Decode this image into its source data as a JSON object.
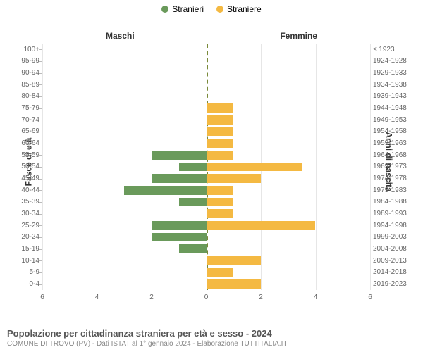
{
  "legend": {
    "male": "Stranieri",
    "female": "Straniere"
  },
  "columns": {
    "left": "Maschi",
    "right": "Femmine"
  },
  "axis_titles": {
    "left": "Fasce di età",
    "right": "Anni di nascita"
  },
  "colors": {
    "male": "#6a9a5b",
    "female": "#f4b942",
    "grid": "#e6e6e6",
    "center_dash": "#7a8a3a",
    "bg": "#ffffff"
  },
  "chart": {
    "type": "population-pyramid",
    "x_max": 6,
    "x_ticks": [
      0,
      2,
      4,
      6
    ],
    "rows": [
      {
        "age": "100+",
        "birth": "≤ 1923",
        "m": 0,
        "f": 0
      },
      {
        "age": "95-99",
        "birth": "1924-1928",
        "m": 0,
        "f": 0
      },
      {
        "age": "90-94",
        "birth": "1929-1933",
        "m": 0,
        "f": 0
      },
      {
        "age": "85-89",
        "birth": "1934-1938",
        "m": 0,
        "f": 0
      },
      {
        "age": "80-84",
        "birth": "1939-1943",
        "m": 0,
        "f": 0
      },
      {
        "age": "75-79",
        "birth": "1944-1948",
        "m": 0,
        "f": 1
      },
      {
        "age": "70-74",
        "birth": "1949-1953",
        "m": 0,
        "f": 1
      },
      {
        "age": "65-69",
        "birth": "1954-1958",
        "m": 0,
        "f": 1
      },
      {
        "age": "60-64",
        "birth": "1959-1963",
        "m": 0,
        "f": 1
      },
      {
        "age": "55-59",
        "birth": "1964-1968",
        "m": 2,
        "f": 1
      },
      {
        "age": "50-54",
        "birth": "1969-1973",
        "m": 1,
        "f": 3.5
      },
      {
        "age": "45-49",
        "birth": "1974-1978",
        "m": 2,
        "f": 2
      },
      {
        "age": "40-44",
        "birth": "1979-1983",
        "m": 3,
        "f": 1
      },
      {
        "age": "35-39",
        "birth": "1984-1988",
        "m": 1,
        "f": 1
      },
      {
        "age": "30-34",
        "birth": "1989-1993",
        "m": 0,
        "f": 1
      },
      {
        "age": "25-29",
        "birth": "1994-1998",
        "m": 2,
        "f": 4
      },
      {
        "age": "20-24",
        "birth": "1999-2003",
        "m": 2,
        "f": 0
      },
      {
        "age": "15-19",
        "birth": "2004-2008",
        "m": 1,
        "f": 0
      },
      {
        "age": "10-14",
        "birth": "2009-2013",
        "m": 0,
        "f": 2
      },
      {
        "age": "5-9",
        "birth": "2014-2018",
        "m": 0,
        "f": 1
      },
      {
        "age": "0-4",
        "birth": "2019-2023",
        "m": 0,
        "f": 2
      }
    ]
  },
  "footer": {
    "title": "Popolazione per cittadinanza straniera per età e sesso - 2024",
    "sub": "COMUNE DI TROVO (PV) - Dati ISTAT al 1° gennaio 2024 - Elaborazione TUTTITALIA.IT"
  }
}
